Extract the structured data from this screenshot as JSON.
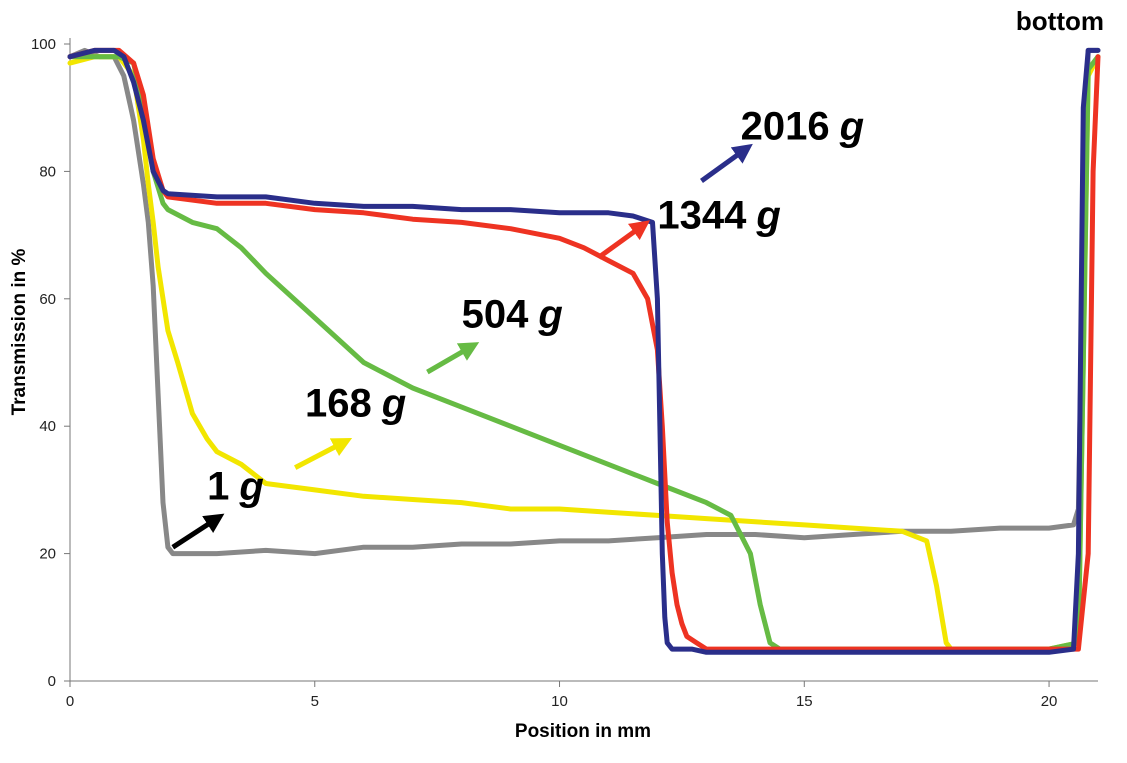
{
  "chart_data": {
    "type": "line",
    "title": "",
    "xlabel": "Position in mm",
    "ylabel": "Transmission in %",
    "corner_label": "bottom",
    "xlim": [
      0,
      21
    ],
    "ylim": [
      0,
      100
    ],
    "xticks": [
      0,
      5,
      10,
      15,
      20
    ],
    "yticks": [
      0,
      20,
      40,
      60,
      80,
      100
    ],
    "grid": false,
    "series": [
      {
        "color": "#888888",
        "x": [
          0,
          0.3,
          0.6,
          0.9,
          1.1,
          1.3,
          1.5,
          1.6,
          1.7,
          1.8,
          1.9,
          2.0,
          2.1,
          2.5,
          3.0,
          4.0,
          5.0,
          6.0,
          7.0,
          8.0,
          9.0,
          10.0,
          11.0,
          12.0,
          13.0,
          14.0,
          15.0,
          16.0,
          17.0,
          18.0,
          19.0,
          20.0,
          20.5,
          20.6,
          20.7,
          20.8,
          21.0
        ],
        "y": [
          98,
          99,
          98,
          98,
          95,
          88,
          78,
          72,
          62,
          45,
          28,
          21,
          20,
          20,
          20,
          20.5,
          20,
          21,
          21,
          21.5,
          21.5,
          22,
          22,
          22.5,
          23,
          23,
          22.5,
          23,
          23.5,
          23.5,
          24,
          24,
          24.5,
          27,
          70,
          99,
          99
        ]
      },
      {
        "color": "#f2e600",
        "x": [
          0,
          0.5,
          1.0,
          1.3,
          1.5,
          1.6,
          1.7,
          1.8,
          1.9,
          2.0,
          2.2,
          2.5,
          2.8,
          3.0,
          3.5,
          4.0,
          5.0,
          6.0,
          7.0,
          8.0,
          9.0,
          10.0,
          11.0,
          12.0,
          13.0,
          14.0,
          15.0,
          16.0,
          17.0,
          17.5,
          17.7,
          17.9,
          18.0,
          19.0,
          20.0,
          20.6,
          20.7,
          20.8,
          21.0
        ],
        "y": [
          97,
          98,
          98,
          95,
          85,
          78,
          72,
          65,
          60,
          55,
          50,
          42,
          38,
          36,
          34,
          31,
          30,
          29,
          28.5,
          28,
          27,
          27,
          26.5,
          26,
          25.5,
          25,
          24.5,
          24,
          23.5,
          22,
          15,
          6,
          5,
          5,
          5,
          6,
          50,
          95,
          98
        ]
      },
      {
        "color": "#66bb44",
        "x": [
          0,
          0.5,
          1.0,
          1.3,
          1.5,
          1.7,
          1.9,
          2.0,
          2.5,
          3.0,
          3.5,
          4.0,
          5.0,
          6.0,
          7.0,
          8.0,
          9.0,
          10.0,
          11.0,
          12.0,
          13.0,
          13.5,
          13.9,
          14.1,
          14.3,
          14.5,
          14.6,
          15.0,
          16.0,
          17.0,
          18.0,
          19.0,
          20.0,
          20.6,
          20.7,
          20.8,
          21.0
        ],
        "y": [
          98,
          98,
          98,
          97,
          90,
          80,
          75,
          74,
          72,
          71,
          68,
          64,
          57,
          50,
          46,
          43,
          40,
          37,
          34,
          31,
          28,
          26,
          20,
          12,
          6,
          5,
          5,
          5,
          5,
          5,
          5,
          5,
          5,
          6,
          50,
          96,
          98
        ]
      },
      {
        "color": "#ee3322",
        "x": [
          0,
          0.5,
          1.0,
          1.3,
          1.5,
          1.7,
          1.9,
          2.0,
          3.0,
          4.0,
          5.0,
          6.0,
          7.0,
          8.0,
          9.0,
          10.0,
          10.5,
          11.0,
          11.5,
          11.8,
          12.0,
          12.1,
          12.2,
          12.3,
          12.4,
          12.5,
          12.6,
          12.8,
          13.0,
          14.0,
          15.0,
          16.0,
          17.0,
          18.0,
          19.0,
          20.0,
          20.6,
          20.8,
          20.9,
          21.0
        ],
        "y": [
          98,
          99,
          99,
          97,
          92,
          82,
          77,
          76,
          75,
          75,
          74,
          73.5,
          72.5,
          72,
          71,
          69.5,
          68,
          66,
          64,
          60,
          52,
          40,
          25,
          17,
          12,
          9,
          7,
          6,
          5,
          5,
          5,
          5,
          5,
          5,
          5,
          5,
          5,
          20,
          80,
          98
        ]
      },
      {
        "color": "#2a2e8a",
        "x": [
          0,
          0.5,
          0.9,
          1.1,
          1.3,
          1.5,
          1.7,
          1.9,
          2.0,
          3.0,
          4.0,
          5.0,
          6.0,
          7.0,
          8.0,
          9.0,
          10.0,
          11.0,
          11.5,
          11.9,
          12.0,
          12.05,
          12.1,
          12.15,
          12.2,
          12.3,
          12.5,
          12.7,
          13.0,
          14.0,
          15.0,
          16.0,
          17.0,
          18.0,
          19.0,
          20.0,
          20.5,
          20.6,
          20.7,
          20.8,
          21.0
        ],
        "y": [
          98,
          99,
          99,
          98,
          94,
          88,
          80,
          77,
          76.5,
          76,
          76,
          75,
          74.5,
          74.5,
          74,
          74,
          73.5,
          73.5,
          73,
          72,
          60,
          40,
          20,
          10,
          6,
          5,
          5,
          5,
          4.5,
          4.5,
          4.5,
          4.5,
          4.5,
          4.5,
          4.5,
          4.5,
          5,
          20,
          90,
          99,
          99
        ]
      }
    ],
    "annotations": [
      {
        "value": "1",
        "unit": "g",
        "color": "#000000",
        "text_at": [
          2.8,
          28.5
        ],
        "arrow_from": [
          2.1,
          21
        ],
        "arrow_to": [
          3.0,
          25.5
        ]
      },
      {
        "value": "168",
        "unit": "g",
        "color": "#f2e600",
        "text_at": [
          4.8,
          41.5
        ],
        "arrow_from": [
          4.6,
          33.5
        ],
        "arrow_to": [
          5.6,
          37.5
        ]
      },
      {
        "value": "504",
        "unit": "g",
        "color": "#66bb44",
        "text_at": [
          8.0,
          55.5
        ],
        "arrow_from": [
          7.3,
          48.5
        ],
        "arrow_to": [
          8.2,
          52.5
        ]
      },
      {
        "value": "1344",
        "unit": "g",
        "color": "#ee3322",
        "text_at": [
          12.0,
          71
        ],
        "arrow_from": [
          10.8,
          66.5
        ],
        "arrow_to": [
          11.7,
          71.5
        ]
      },
      {
        "value": "2016",
        "unit": "g",
        "color": "#2a2e8a",
        "text_at": [
          13.7,
          85
        ],
        "arrow_from": [
          12.9,
          78.5
        ],
        "arrow_to": [
          13.8,
          83.5
        ]
      }
    ]
  }
}
